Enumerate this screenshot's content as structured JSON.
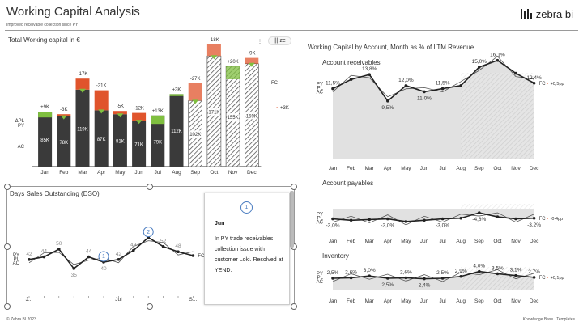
{
  "header": {
    "title": "Working Capital Analysis",
    "subtitle": "Improved receivable collection since PY",
    "logo_text": "zebra bi"
  },
  "zebra_button": {
    "label": "ze"
  },
  "footer": {
    "left": "© Zebra BI 2023",
    "right": "Knowledge Base | Templates"
  },
  "colors": {
    "bar_dark": "#3a3a3a",
    "green": "#7fbf3f",
    "red": "#e0542c",
    "grey_fill": "#d9d9d9",
    "accent": "#4a7cc0"
  },
  "chart_data": [
    {
      "type": "bar",
      "title": "Total Working capital in €",
      "categories": [
        "Jan",
        "Feb",
        "Mar",
        "Apr",
        "May",
        "Jun",
        "Jul",
        "Aug",
        "Sep",
        "Oct",
        "Nov",
        "Dec"
      ],
      "row_labels": {
        "delta": "ΔPL",
        "py": "PY",
        "ac": "AC"
      },
      "series": [
        {
          "name": "AC",
          "values": [
            85,
            78,
            119,
            87,
            81,
            71,
            79,
            112,
            102,
            171,
            155,
            159
          ],
          "labels": [
            "85K",
            "78K",
            "119K",
            "87K",
            "81K",
            "71K",
            "79K",
            "112K",
            "102K",
            "171K",
            "155K",
            "159K"
          ]
        },
        {
          "name": "ΔPY",
          "values": [
            9,
            -3,
            -17,
            -31,
            -5,
            -12,
            13,
            3,
            -27,
            -18,
            20,
            -9
          ],
          "labels": [
            "+9K",
            "-3K",
            "-17K",
            "-31K",
            "-5K",
            "-12K",
            "+13K",
            "+3K",
            "-27K",
            "-18K",
            "+20K",
            "-9K"
          ]
        }
      ],
      "forecast_from": "Sep",
      "total_delta_label": "+3K",
      "fc_label": "FC"
    },
    {
      "type": "line",
      "title": "Working Capital by Account, Month as % of LTM Revenue",
      "subtitle": "Account receivables",
      "categories": [
        "Jan",
        "Feb",
        "Mar",
        "Apr",
        "May",
        "Jun",
        "Jul",
        "Aug",
        "Sep",
        "Oct",
        "Nov",
        "Dec"
      ],
      "row_labels": {
        "py": "PY",
        "pl": "PL",
        "ac": "AC"
      },
      "series": [
        {
          "name": "AC",
          "values": [
            11.5,
            13.0,
            13.8,
            9.5,
            12.0,
            11.0,
            11.5,
            12.0,
            15.0,
            16.1,
            14.0,
            12.4
          ],
          "labels": [
            "11,5%",
            "",
            "13,8%",
            "9,5%",
            "12,0%",
            "11,0%",
            "11,5%",
            "",
            "15,0%",
            "16,1%",
            "",
            "12,4%"
          ]
        }
      ],
      "end_label": "+0,5pp",
      "fc_label": "FC"
    },
    {
      "type": "line",
      "title": "Account payables",
      "categories": [
        "Jan",
        "Feb",
        "Mar",
        "Apr",
        "May",
        "Jun",
        "Jul",
        "Aug",
        "Sep",
        "Oct",
        "Nov",
        "Dec"
      ],
      "row_labels": {
        "py": "PY",
        "pl": "PL",
        "ac": "AC"
      },
      "series": [
        {
          "name": "AC",
          "values": [
            -3.0,
            -2.6,
            -2.8,
            -3.0,
            -2.2,
            -2.6,
            -3.0,
            -3.2,
            -4.8,
            -3.6,
            -3.0,
            -3.2
          ],
          "labels": [
            "-3,0%",
            "",
            "",
            "-3,0%",
            "",
            "",
            "-3,0%",
            "",
            "-4,8%",
            "",
            "",
            "-3,2%"
          ]
        }
      ],
      "end_label": "-0,4pp",
      "fc_label": "FC"
    },
    {
      "type": "line",
      "title": "Inventory",
      "categories": [
        "Jan",
        "Feb",
        "Mar",
        "Apr",
        "May",
        "Jun",
        "Jul",
        "Aug",
        "Sep",
        "Oct",
        "Nov",
        "Dec"
      ],
      "row_labels": {
        "py": "PY",
        "pl": "PL",
        "ac": "AC"
      },
      "series": [
        {
          "name": "AC",
          "values": [
            2.5,
            2.6,
            3.0,
            2.5,
            2.6,
            2.4,
            2.5,
            2.9,
            4.0,
            3.5,
            3.1,
            2.7
          ],
          "labels": [
            "2,5%",
            "2,6%",
            "3,0%",
            "2,5%",
            "2,6%",
            "2,4%",
            "2,5%",
            "2,9%",
            "4,0%",
            "3,5%",
            "3,1%",
            "2,7%"
          ]
        }
      ],
      "end_label": "+0,1pp",
      "fc_label": "FC"
    },
    {
      "type": "line",
      "title": "Days Sales Outstanding (DSO)",
      "categories": [
        "J...",
        "",
        "",
        "",
        "",
        "",
        "Jul",
        "",
        "",
        "",
        "",
        "S..."
      ],
      "row_labels": {
        "py": "PY",
        "pl": "PL",
        "ac": "AC"
      },
      "series": [
        {
          "name": "AC",
          "values": [
            42,
            44,
            50,
            35,
            44,
            40,
            42,
            49,
            59,
            52,
            48,
            45
          ],
          "labels": [
            "42",
            "44",
            "50",
            "35",
            "44",
            "40",
            "42",
            "49",
            "59",
            "52",
            "48",
            ""
          ]
        }
      ],
      "markers": [
        {
          "index": 5,
          "label": "1"
        },
        {
          "index": 8,
          "label": "2"
        }
      ],
      "end_label": "+2",
      "fc_label": "FC"
    }
  ],
  "note": {
    "number": "1",
    "title": "Jun",
    "text": "In PY trade receivables collection issue with customer Loki. Resolved at YEND."
  }
}
